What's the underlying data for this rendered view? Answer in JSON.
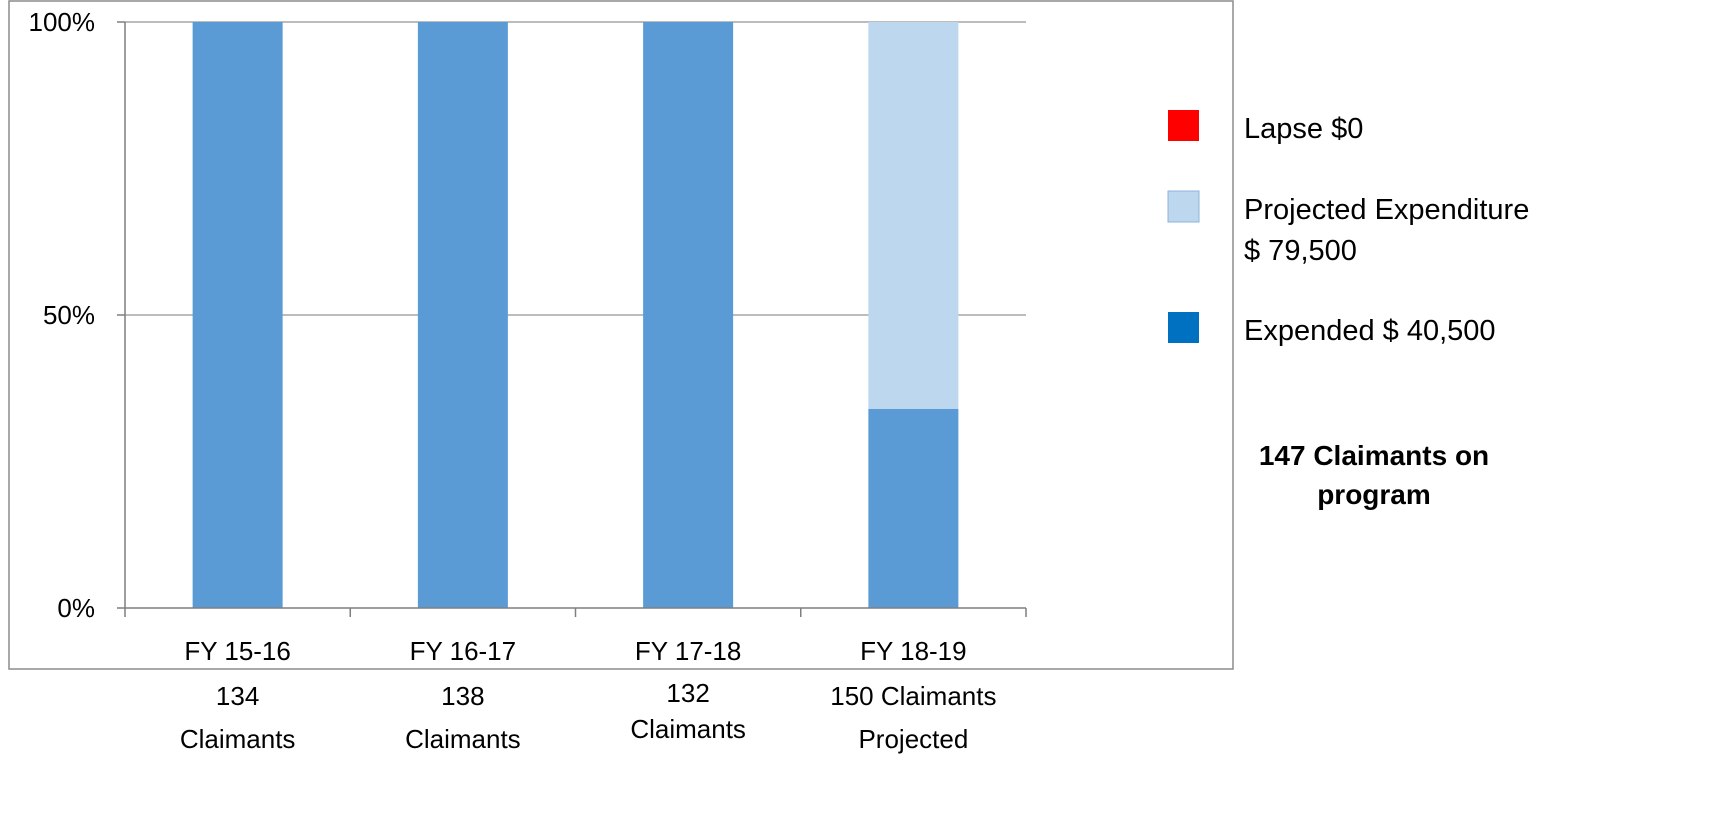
{
  "chart_data": {
    "type": "bar",
    "stacked": true,
    "percent_stacked": true,
    "categories": [
      "FY 15-16",
      "FY 16-17",
      "FY 17-18",
      "FY 18-19"
    ],
    "category_sublabels": [
      [
        "134",
        "Claimants"
      ],
      [
        "138",
        "Claimants"
      ],
      [
        "132",
        "Claimants"
      ],
      [
        "150 Claimants",
        "Projected"
      ]
    ],
    "series": [
      {
        "name": "Expended $ 40,500",
        "values": [
          100,
          100,
          100,
          34
        ],
        "color": "#5B9BD5"
      },
      {
        "name": "Projected Expenditure $  79,500",
        "values": [
          0,
          0,
          0,
          66
        ],
        "color": "#BDD7EE"
      },
      {
        "name": "Lapse $0",
        "values": [
          0,
          0,
          0,
          0
        ],
        "color": "#FF0000"
      }
    ],
    "legend": [
      {
        "lines": [
          "Lapse $0"
        ],
        "color": "#FF0000"
      },
      {
        "lines": [
          "Projected Expenditure",
          "$  79,500"
        ],
        "color": "#BDD7EE"
      },
      {
        "lines": [
          "Expended $ 40,500"
        ],
        "color": "#0070C0"
      }
    ],
    "y_ticks": [
      {
        "value": 0,
        "label": "0%"
      },
      {
        "value": 50,
        "label": "50%"
      },
      {
        "value": 100,
        "label": "100%"
      }
    ],
    "ylim": [
      0,
      100
    ],
    "grid": true,
    "legend_position": "right",
    "annotation": [
      "147 Claimants on",
      "program"
    ]
  }
}
